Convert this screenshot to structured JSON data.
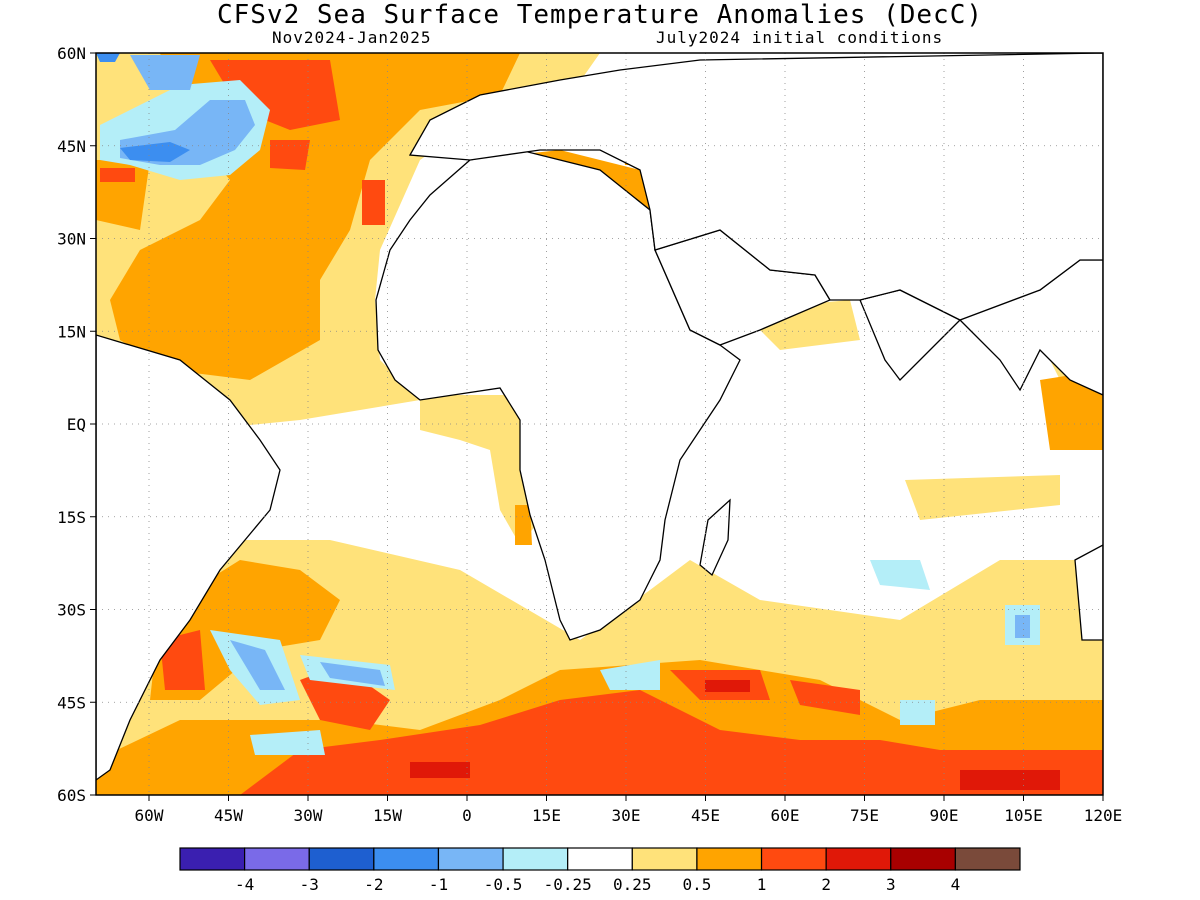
{
  "title": "CFSv2 Sea Surface Temperature Anomalies (DecC)",
  "subtitle_left": "Nov2024-Jan2025",
  "subtitle_right": "July2024 initial conditions",
  "map": {
    "lon_range": [
      -70,
      120
    ],
    "lat_range": [
      -60,
      60
    ],
    "x_ticks": [
      "60W",
      "45W",
      "30W",
      "15W",
      "0",
      "15E",
      "30E",
      "45E",
      "60E",
      "75E",
      "90E",
      "105E",
      "120E"
    ],
    "y_ticks": [
      "60N",
      "45N",
      "30N",
      "15N",
      "EQ",
      "15S",
      "30S",
      "45S",
      "60S"
    ],
    "grid": "dotted"
  },
  "colorbar": {
    "colors": [
      "#3a1fb0",
      "#7a6ae8",
      "#1e5fd0",
      "#3c8ef0",
      "#78b6f6",
      "#b4eef8",
      "#ffffff",
      "#ffe27a",
      "#ffa400",
      "#ff4a10",
      "#e01808",
      "#a80000",
      "#7a4a3a"
    ],
    "labels": [
      "-4",
      "-3",
      "-2",
      "-1",
      "-0.5",
      "-0.25",
      "0.25",
      "0.5",
      "1",
      "2",
      "3",
      "4"
    ]
  },
  "colors": {
    "land_outline": "#000000",
    "positive_weak": "#ffe27a",
    "positive_mid": "#ffa400",
    "positive_strong": "#ff4a10",
    "positive_max": "#e01808",
    "negative_weak": "#b4eef8",
    "negative_mid": "#78b6f6",
    "negative_strong": "#3c8ef0",
    "negative_max": "#1e5fd0"
  }
}
